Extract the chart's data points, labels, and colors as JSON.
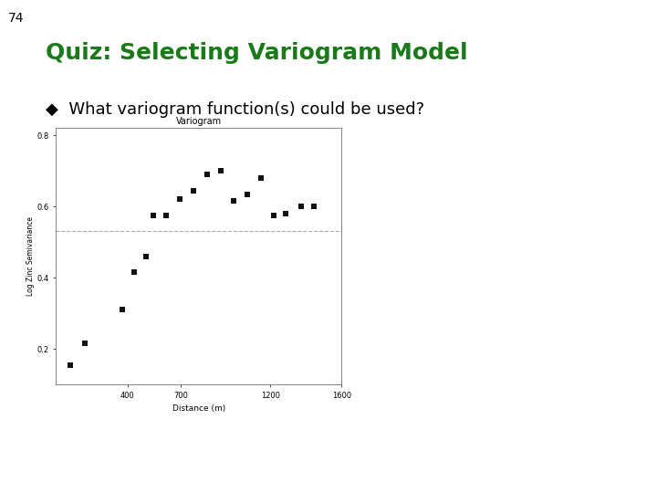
{
  "slide_number": "74",
  "title": "Quiz: Selecting Variogram Model",
  "bullet": "What variogram function(s) could be used?",
  "title_color": "#1a7a1a",
  "title_fontsize": 18,
  "slide_bg": "#ffffff",
  "variogram_title": "Variogram",
  "xlabel": "Distance (m)",
  "ylabel": "Log Zinc Semivariance",
  "dashed_line_y": 0.53,
  "scatter_x": [
    80,
    160,
    370,
    440,
    505,
    545,
    615,
    695,
    770,
    845,
    925,
    995,
    1070,
    1150,
    1220,
    1285,
    1375,
    1445
  ],
  "scatter_y": [
    0.155,
    0.215,
    0.31,
    0.415,
    0.46,
    0.575,
    0.575,
    0.62,
    0.645,
    0.69,
    0.7,
    0.615,
    0.635,
    0.68,
    0.575,
    0.58,
    0.6,
    0.6
  ],
  "xlim": [
    0,
    1600
  ],
  "ylim": [
    0.1,
    0.82
  ],
  "yticks": [
    0.2,
    0.4,
    0.6,
    0.8
  ],
  "xticks": [
    400,
    700,
    1200,
    1600
  ],
  "plot_bg": "#ffffff",
  "marker_color": "#111111",
  "marker_size": 3,
  "dashed_color": "#aaaaaa",
  "blue_bar_color": "#003087",
  "green_bar_color": "#1a7a1a",
  "bullet_fontsize": 13,
  "bullet_color": "#000000"
}
